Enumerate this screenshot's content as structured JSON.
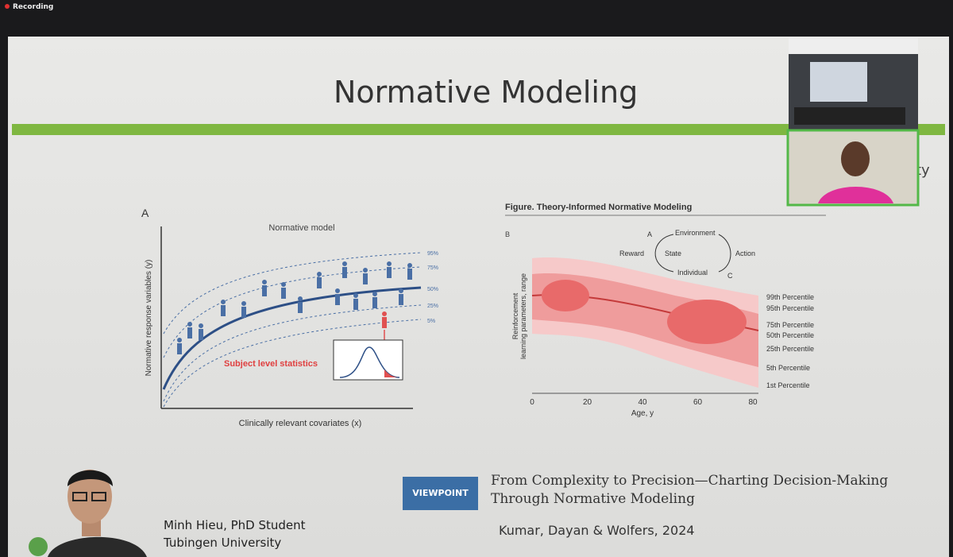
{
  "recording": "Recording",
  "slide": {
    "title": "Normative Modeling",
    "cut_text": "ty",
    "figure_a": {
      "panel": "A",
      "title": "Normative model",
      "y_label": "Normative response variables (y)",
      "x_label": "Clinically relevant covariates (x)",
      "percentiles": [
        "95%",
        "75%",
        "50%",
        "25%",
        "5%"
      ],
      "annotation": "Subject level statistics"
    },
    "figure_b": {
      "caption": "Figure. Theory-Informed Normative Modeling",
      "panel": "B",
      "loop": {
        "label_a": "A",
        "environment": "Environment",
        "reward": "Reward",
        "state": "State",
        "action": "Action",
        "individual": "Individual",
        "label_c": "C"
      },
      "y_label": [
        "Reinforcement",
        "learning parameters, range"
      ],
      "x_ticks": [
        0,
        20,
        40,
        60,
        80
      ],
      "x_label": "Age, y",
      "percentiles": [
        "99th Percentile",
        "95th Percentile",
        "75th Percentile",
        "50th Percentile",
        "25th Percentile",
        "5th Percentile",
        "1st Percentile"
      ]
    },
    "badge": "VIEWPOINT",
    "paper_title": [
      "From Complexity to Precision—Charting Decision-Making",
      "Through Normative Modeling"
    ],
    "citation": "Kumar, Dayan & Wolfers, 2024",
    "presenter": {
      "name": "Minh Hieu, PhD Student",
      "affiliation": "Tubingen University"
    }
  }
}
